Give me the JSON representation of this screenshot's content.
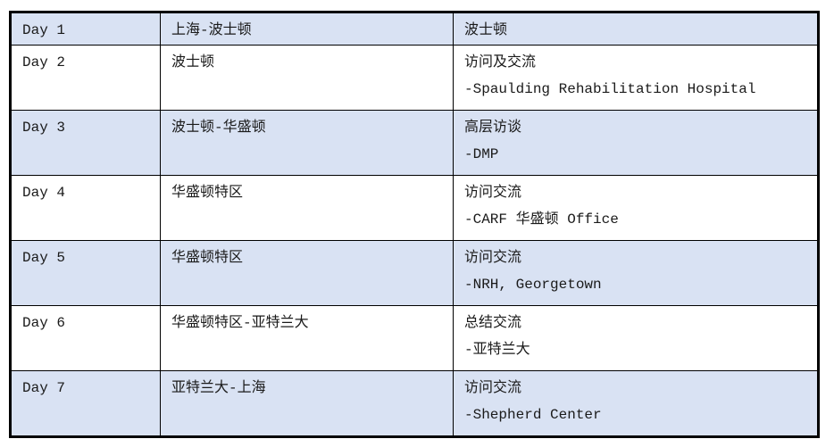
{
  "itinerary": {
    "rows": [
      {
        "day": "Day 1",
        "route": "上海-波士顿",
        "activity": "波士顿",
        "detail": "",
        "shaded": true
      },
      {
        "day": "Day 2",
        "route": "波士顿",
        "activity": "访问及交流",
        "detail": "-Spaulding Rehabilitation Hospital",
        "shaded": false
      },
      {
        "day": "Day 3",
        "route": "波士顿-华盛顿",
        "activity": "高层访谈",
        "detail": "-DMP",
        "shaded": true
      },
      {
        "day": "Day 4",
        "route": "华盛顿特区",
        "activity": "访问交流",
        "detail": "-CARF 华盛顿 Office",
        "shaded": false
      },
      {
        "day": "Day 5",
        "route": "华盛顿特区",
        "activity": "访问交流",
        "detail": "-NRH, Georgetown",
        "shaded": true
      },
      {
        "day": "Day 6",
        "route": "华盛顿特区-亚特兰大",
        "activity": "总结交流",
        "detail": "-亚特兰大",
        "shaded": false
      },
      {
        "day": "Day 7",
        "route": "亚特兰大-上海",
        "activity": "访问交流",
        "detail": "-Shepherd Center",
        "shaded": true
      }
    ]
  },
  "colors": {
    "shade": "#d9e2f3",
    "border": "#000000"
  }
}
